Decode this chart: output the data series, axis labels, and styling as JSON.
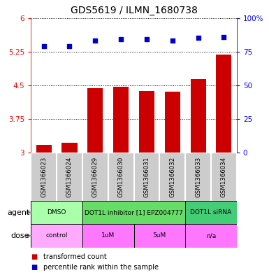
{
  "title": "GDS5619 / ILMN_1680738",
  "samples": [
    "GSM1366023",
    "GSM1366024",
    "GSM1366029",
    "GSM1366030",
    "GSM1366031",
    "GSM1366032",
    "GSM1366033",
    "GSM1366034"
  ],
  "bar_values": [
    3.18,
    3.22,
    4.43,
    4.47,
    4.38,
    4.36,
    4.63,
    5.18
  ],
  "scatter_values": [
    79,
    79,
    83,
    84,
    84,
    83,
    85,
    86
  ],
  "ylim_left": [
    3,
    6
  ],
  "ylim_right": [
    0,
    100
  ],
  "yticks_left": [
    3,
    3.75,
    4.5,
    5.25,
    6
  ],
  "ytick_labels_left": [
    "3",
    "3.75",
    "4.5",
    "5.25",
    "6"
  ],
  "yticks_right": [
    0,
    25,
    50,
    75,
    100
  ],
  "ytick_labels_right": [
    "0",
    "25",
    "50",
    "75",
    "100%"
  ],
  "bar_color": "#cc0000",
  "scatter_color": "#0000cc",
  "agent_groups": [
    {
      "label": "DMSO",
      "start": 0,
      "end": 2,
      "color": "#aaffaa"
    },
    {
      "label": "DOT1L inhibitor [1] EPZ004777",
      "start": 2,
      "end": 6,
      "color": "#66dd66"
    },
    {
      "label": "DOT1L siRNA",
      "start": 6,
      "end": 8,
      "color": "#44cc77"
    }
  ],
  "dose_groups": [
    {
      "label": "control",
      "start": 0,
      "end": 2,
      "color": "#ffaaff"
    },
    {
      "label": "1uM",
      "start": 2,
      "end": 4,
      "color": "#ff77ff"
    },
    {
      "label": "5uM",
      "start": 4,
      "end": 6,
      "color": "#ff77ff"
    },
    {
      "label": "n/a",
      "start": 6,
      "end": 8,
      "color": "#ff77ff"
    }
  ],
  "legend_items": [
    {
      "label": "transformed count",
      "color": "#cc0000"
    },
    {
      "label": "percentile rank within the sample",
      "color": "#0000cc"
    }
  ],
  "agent_label": "agent",
  "dose_label": "dose",
  "sample_bg": "#cccccc",
  "sample_border": "#ffffff"
}
